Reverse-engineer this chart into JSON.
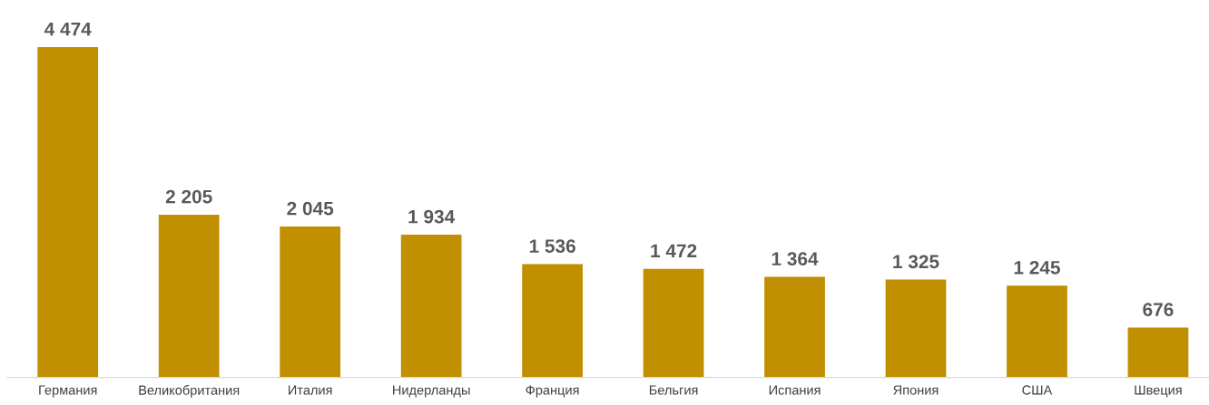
{
  "chart_data": {
    "type": "bar",
    "categories": [
      "Германия",
      "Великобритания",
      "Италия",
      "Нидерланды",
      "Франция",
      "Бельгия",
      "Испания",
      "Япония",
      "США",
      "Швеция"
    ],
    "values": [
      4474,
      2205,
      2045,
      1934,
      1536,
      1472,
      1364,
      1325,
      1245,
      676
    ],
    "value_labels": [
      "4 474",
      "2 205",
      "2 045",
      "1 934",
      "1 536",
      "1 472",
      "1 364",
      "1 325",
      "1 245",
      "676"
    ],
    "color": "#c09000",
    "grid": false,
    "legend": false
  }
}
